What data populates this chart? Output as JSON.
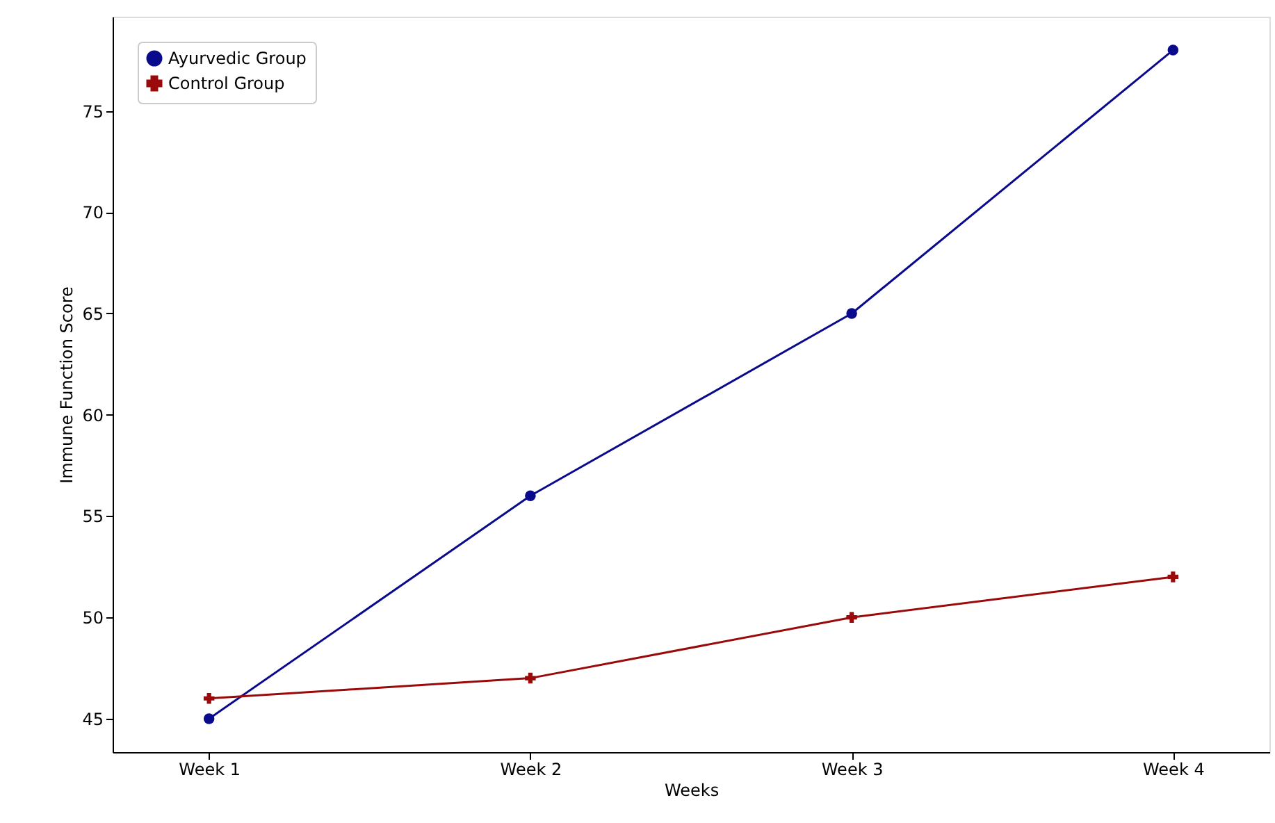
{
  "chart_data": {
    "type": "line",
    "xlabel": "Weeks",
    "ylabel": "Immune Function Score",
    "categories": [
      "Week 1",
      "Week 2",
      "Week 3",
      "Week 4"
    ],
    "series": [
      {
        "name": "Ayurvedic Group",
        "color": "#0a0a8c",
        "marker": "circle",
        "values": [
          45,
          56,
          65,
          78
        ]
      },
      {
        "name": "Control Group",
        "color": "#9b0a0a",
        "marker": "cross",
        "values": [
          46,
          47,
          50,
          52
        ]
      }
    ],
    "ylim": [
      43.35,
      79.65
    ],
    "yticks": [
      45,
      50,
      55,
      60,
      65,
      70,
      75
    ],
    "grid": false,
    "legend": "top left",
    "line_style": "solid"
  }
}
